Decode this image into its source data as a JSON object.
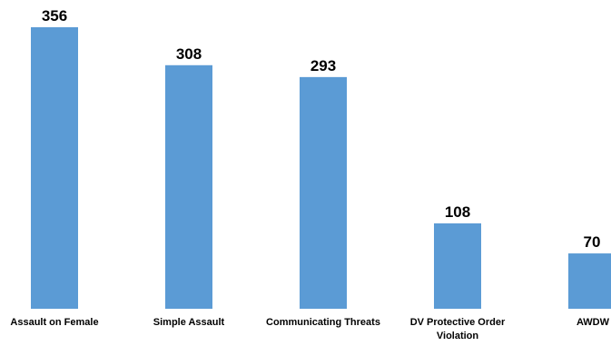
{
  "chart_data": {
    "type": "bar",
    "categories": [
      "Assault on Female",
      "Simple Assault",
      "Communicating Threats",
      "DV Protective Order Violation",
      "AWDW"
    ],
    "values": [
      356,
      308,
      293,
      108,
      70
    ],
    "title": "",
    "xlabel": "",
    "ylabel": "",
    "ylim": [
      0,
      356
    ],
    "grid": false,
    "legend": "none",
    "bar_color": "#5B9BD5",
    "text_color": "#000000",
    "background": "#FFFFFF"
  }
}
